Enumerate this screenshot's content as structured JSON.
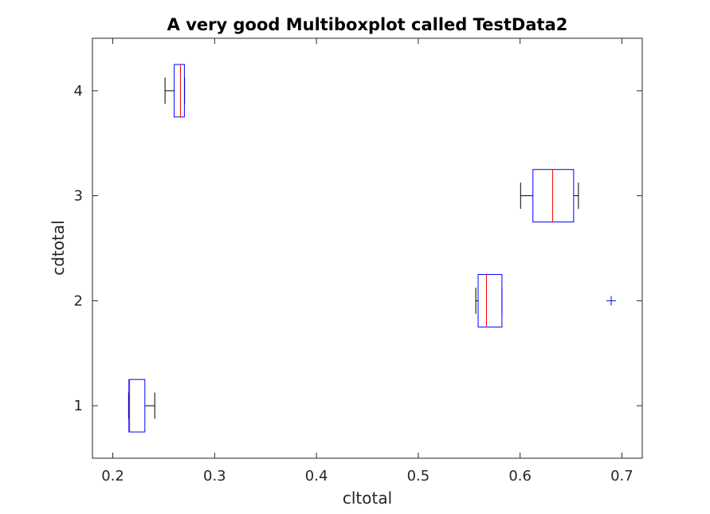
{
  "chart_data": {
    "type": "boxplot",
    "orientation": "horizontal",
    "title": "A very good Multiboxplot called TestData2",
    "xlabel": "cltotal",
    "ylabel": "cdtotal",
    "xlim": [
      0.18,
      0.72
    ],
    "ylim": [
      0.5,
      4.5
    ],
    "xticks": [
      "0.2",
      "0.3",
      "0.4",
      "0.5",
      "0.6",
      "0.7"
    ],
    "yticks": [
      "1",
      "2",
      "3",
      "4"
    ],
    "grid": false,
    "colors": {
      "box": "#0000ff",
      "median": "#ff0000",
      "whisker": "#000000",
      "outlier": "#0000ff",
      "axis": "#262626"
    },
    "groups": [
      {
        "y": 1,
        "whisker_low": 0.2155,
        "q1": 0.2158,
        "median": 0.2165,
        "q3": 0.2315,
        "whisker_high": 0.2412,
        "outliers": []
      },
      {
        "y": 2,
        "whisker_low": 0.5565,
        "q1": 0.5588,
        "median": 0.567,
        "q3": 0.5822,
        "whisker_high": 0.5822,
        "outliers": [
          0.6895
        ]
      },
      {
        "y": 3,
        "whisker_low": 0.6005,
        "q1": 0.6126,
        "median": 0.632,
        "q3": 0.6526,
        "whisker_high": 0.6573,
        "outliers": []
      },
      {
        "y": 4,
        "whisker_low": 0.2513,
        "q1": 0.2603,
        "median": 0.2665,
        "q3": 0.2703,
        "whisker_high": 0.2705,
        "outliers": []
      }
    ]
  }
}
